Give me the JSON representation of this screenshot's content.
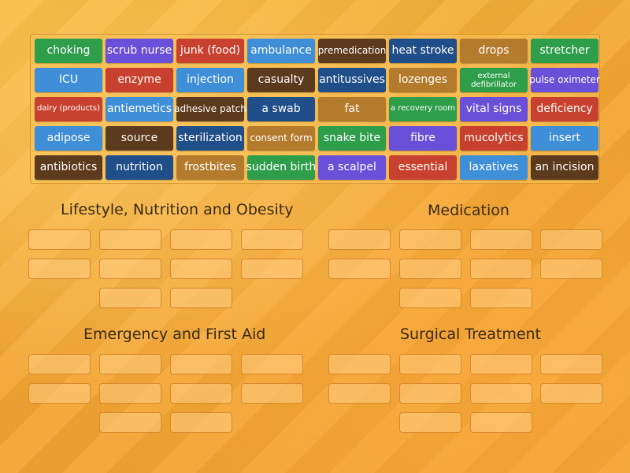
{
  "colors": {
    "green": "#2e9e4a",
    "purple": "#6a4fd8",
    "red": "#c8412e",
    "blue": "#3f8fd8",
    "brown": "#5c3a1e",
    "navy": "#1f4e88",
    "olive": "#b57b2d",
    "slot_border": "#d88a2f"
  },
  "tiles": [
    [
      "choking",
      "scrub nurse",
      "junk (food)",
      "ambulance",
      "premedication",
      "heat stroke",
      "drops",
      "stretcher"
    ],
    [
      "ICU",
      "enzyme",
      "injection",
      "casualty",
      "antitussives",
      "lozenges",
      "external defibrillator",
      "pulse oximeter"
    ],
    [
      "dairy (products)",
      "antiemetics",
      "adhesive patch",
      "a swab",
      "fat",
      "a recovery room",
      "vital signs",
      "deficiency"
    ],
    [
      "adipose",
      "source",
      "sterilization",
      "consent form",
      "snake bite",
      "fibre",
      "mucolytics",
      "insert"
    ],
    [
      "antibiotics",
      "nutrition",
      "frostbites",
      "sudden birth",
      "a scalpel",
      "essential",
      "laxatives",
      "an incision"
    ]
  ],
  "categories": [
    "Lifestyle, Nutrition and Obesity",
    "Medication",
    "Emergency and First Aid",
    "Surgical Treatment"
  ]
}
